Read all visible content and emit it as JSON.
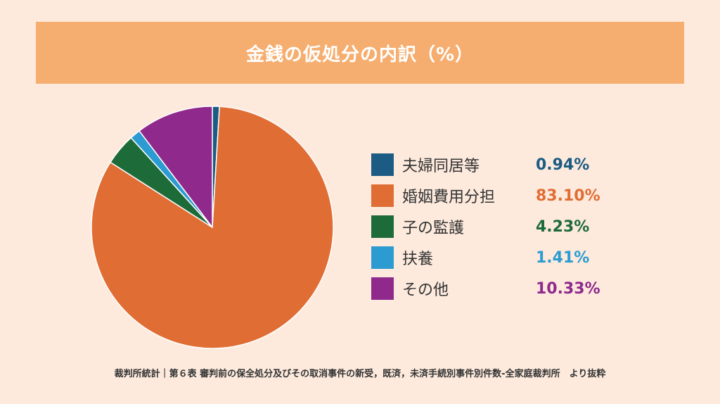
{
  "title": "金銭の仮処分の内訳（%）",
  "source": "裁判所統計｜第６表 審判前の保全処分及びその取消事件の新受，既済，未済手続別事件別件数-全家庭裁判所　より抜粋",
  "chart_data": {
    "type": "pie",
    "title": "金銭の仮処分の内訳（%）",
    "categories": [
      "夫婦同居等",
      "婚姻費用分担",
      "子の監護",
      "扶養",
      "その他"
    ],
    "values": [
      0.94,
      83.1,
      4.23,
      1.41,
      10.33
    ],
    "value_labels": [
      "0.94%",
      "83.10%",
      "4.23%",
      "1.41%",
      "10.33%"
    ],
    "colors": [
      "#1b5b84",
      "#e06d33",
      "#1e6b3a",
      "#2b9bd1",
      "#8f2a8c"
    ],
    "legend_position": "right",
    "start_angle": "top",
    "direction": "clockwise"
  }
}
